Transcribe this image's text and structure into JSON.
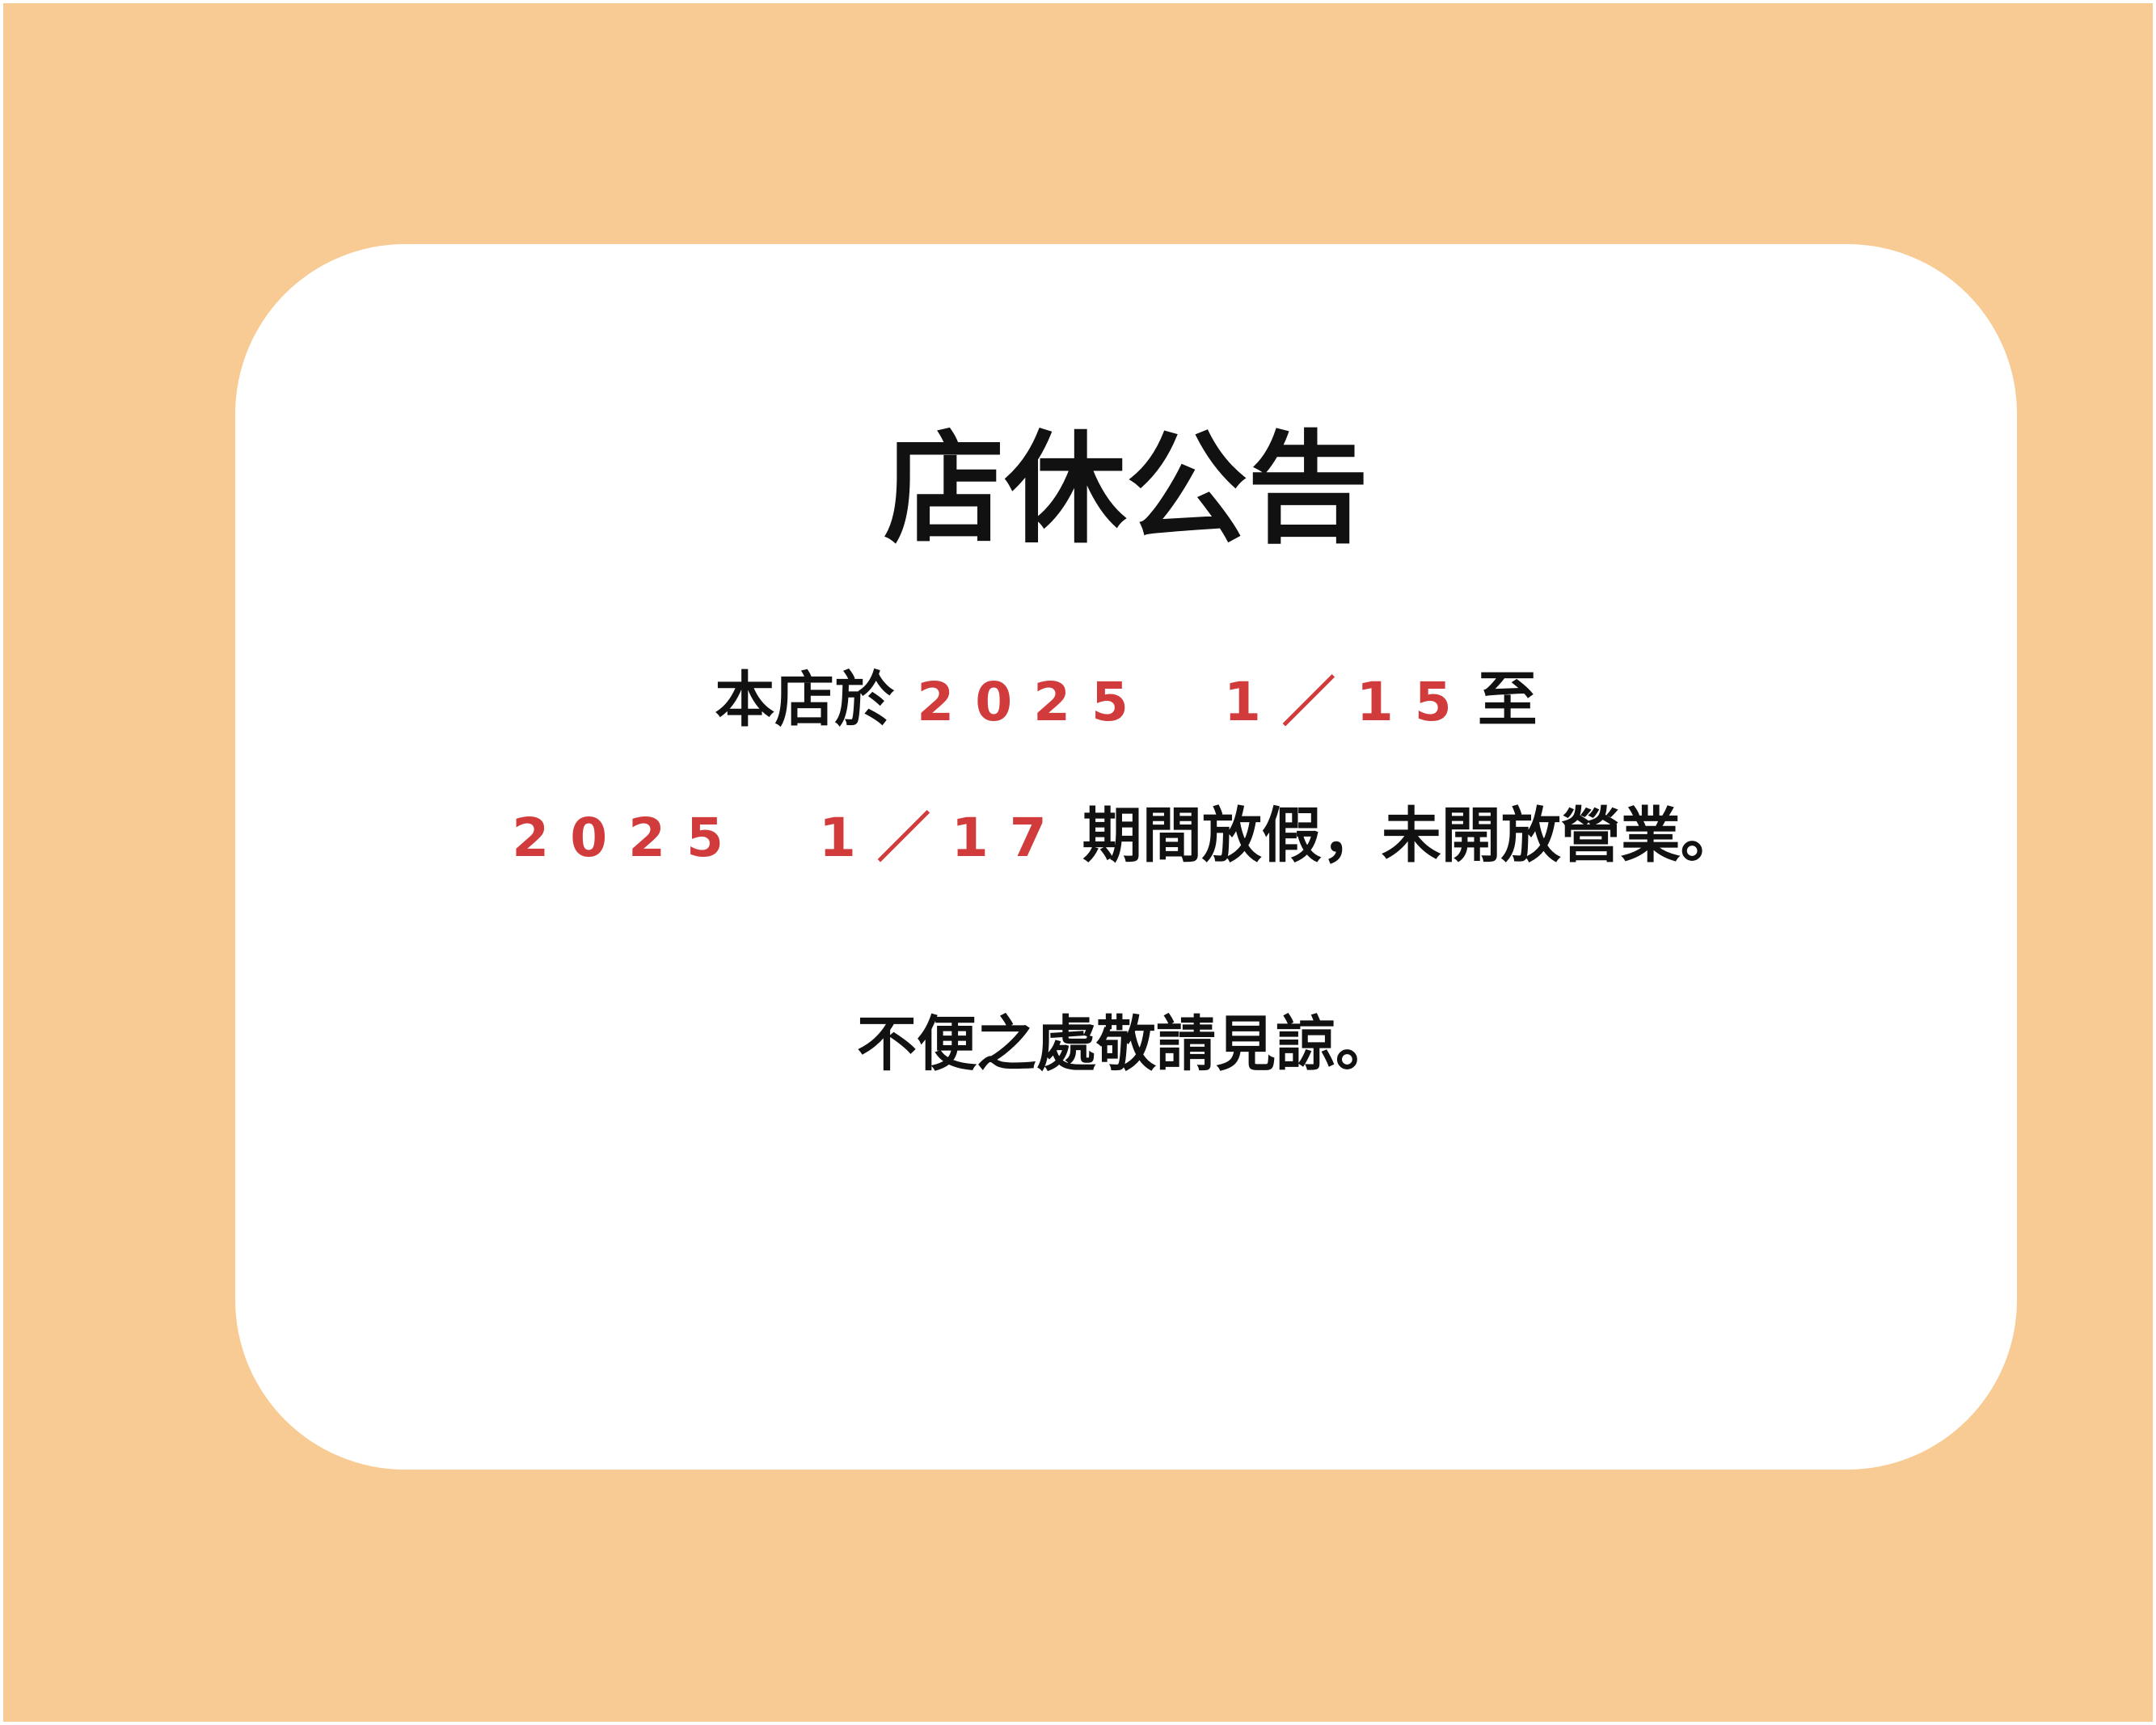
{
  "colors": {
    "background": "#f7cb93",
    "card": "#ffffff",
    "text": "#111111",
    "accent": "#d13b3b"
  },
  "notice": {
    "title": "店休公告",
    "line1": {
      "prefix": "本店於",
      "date": "2025　1／15",
      "suffix": "至"
    },
    "line2": {
      "date": "2025　1／17",
      "suffix": "期間放假，未開放營業。"
    },
    "line3": "不便之處敬請見諒。"
  }
}
